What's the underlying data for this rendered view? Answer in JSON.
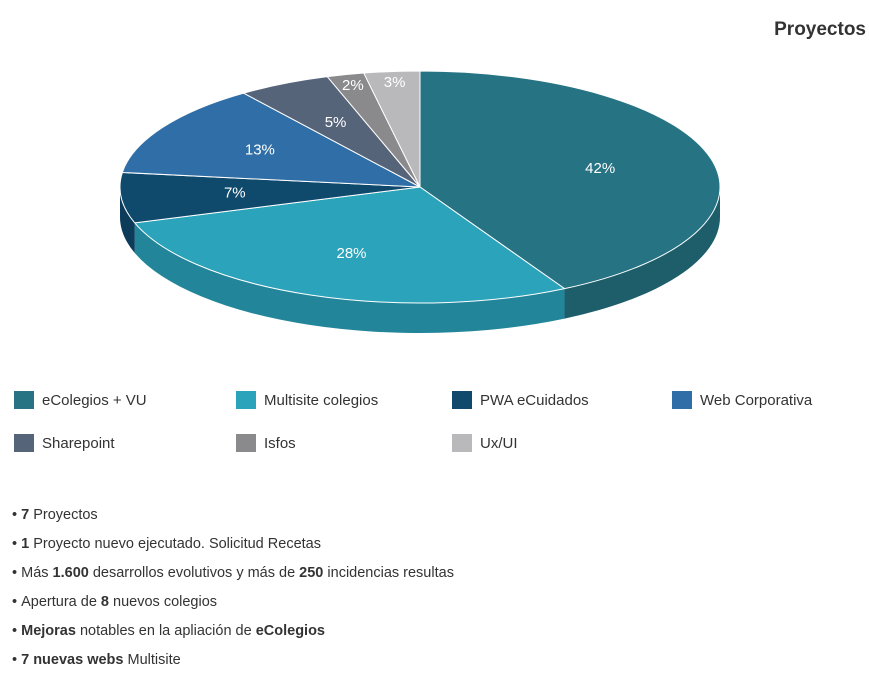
{
  "chart_data": {
    "type": "pie",
    "title": "Proyectos",
    "categories": [
      "eColegios + VU",
      "Multisite colegios",
      "PWA eCuidados",
      "Web Corporativa",
      "Sharepoint",
      "Isfos",
      "Ux/UI"
    ],
    "values": [
      42,
      28,
      7,
      13,
      5,
      2,
      3
    ],
    "value_labels": [
      "42%",
      "28%",
      "7%",
      "13%",
      "5%",
      "2%",
      "3%"
    ],
    "colors": [
      "#257383",
      "#2aa3bb",
      "#0f4a6d",
      "#2f6ea6",
      "#56647a",
      "#8a8a8c",
      "#b9b9bb"
    ]
  },
  "bullets": [
    [
      {
        "text": "7",
        "bold": true
      },
      {
        "text": " Proyectos"
      }
    ],
    [
      {
        "text": "1",
        "bold": true
      },
      {
        "text": " Proyecto nuevo ejecutado. Solicitud Recetas"
      }
    ],
    [
      {
        "text": "Más "
      },
      {
        "text": "1.600",
        "bold": true
      },
      {
        "text": " desarrollos evolutivos y más de "
      },
      {
        "text": "250",
        "bold": true
      },
      {
        "text": " incidencias resultas"
      }
    ],
    [
      {
        "text": "Apertura de "
      },
      {
        "text": "8",
        "bold": true
      },
      {
        "text": " nuevos colegios"
      }
    ],
    [
      {
        "text": "Mejoras",
        "bold": true
      },
      {
        "text": " notables en la apliación de "
      },
      {
        "text": "eColegios",
        "bold": true
      }
    ],
    [
      {
        "text": "7 nuevas webs",
        "bold": true
      },
      {
        "text": " Multisite"
      }
    ]
  ]
}
